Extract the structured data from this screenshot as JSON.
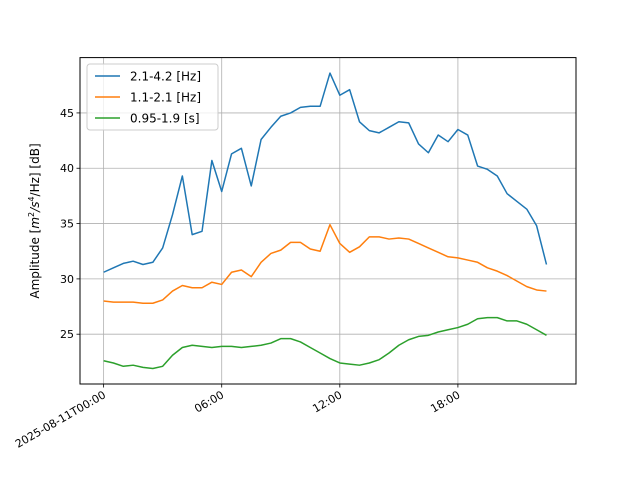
{
  "chart_data": {
    "type": "line",
    "xlabel": "",
    "ylabel": "Amplitude [m²/s⁴/Hz] [dB]",
    "ylabel_parts": {
      "prefix": "Amplitude [",
      "m": "m",
      "exp1": "2",
      "mid": "/s",
      "exp2": "4",
      "suffix": "/Hz] [dB]"
    },
    "x_start": "2025-08-11T00:00",
    "x_step_minutes": 30,
    "xlim_hours": [
      -1.2,
      24.0
    ],
    "ylim": [
      20.5,
      50.0
    ],
    "yticks": [
      25,
      30,
      35,
      40,
      45
    ],
    "xticks": [
      {
        "hour": 0,
        "label": "2025-08-11T00:00"
      },
      {
        "hour": 6,
        "label": "06:00"
      },
      {
        "hour": 12,
        "label": "12:00"
      },
      {
        "hour": 18,
        "label": "18:00"
      }
    ],
    "grid": true,
    "legend_position": "top-left",
    "series": [
      {
        "name": "2.1-4.2 [Hz]",
        "color": "#1f77b4",
        "values": [
          30.6,
          31.0,
          31.4,
          31.6,
          31.3,
          31.5,
          32.8,
          35.8,
          39.3,
          34.0,
          34.3,
          40.7,
          37.9,
          41.3,
          41.8,
          38.4,
          42.6,
          43.7,
          44.7,
          45.0,
          45.5,
          45.6,
          45.6,
          48.6,
          46.6,
          47.1,
          44.2,
          43.4,
          43.2,
          43.7,
          44.2,
          44.1,
          42.2,
          41.4,
          43.0,
          42.4,
          43.5,
          43.0,
          40.2,
          39.9,
          39.3,
          37.7,
          37.0,
          36.3,
          34.8,
          31.3
        ]
      },
      {
        "name": "1.1-2.1 [Hz]",
        "color": "#ff7f0e",
        "values": [
          28.0,
          27.9,
          27.9,
          27.9,
          27.8,
          27.8,
          28.1,
          28.9,
          29.4,
          29.2,
          29.2,
          29.7,
          29.5,
          30.6,
          30.8,
          30.2,
          31.5,
          32.3,
          32.6,
          33.3,
          33.3,
          32.7,
          32.5,
          34.9,
          33.2,
          32.4,
          32.9,
          33.8,
          33.8,
          33.6,
          33.7,
          33.6,
          33.2,
          32.8,
          32.4,
          32.0,
          31.9,
          31.7,
          31.5,
          31.0,
          30.7,
          30.3,
          29.8,
          29.3,
          29.0,
          28.9
        ]
      },
      {
        "name": "0.95-1.9 [s]",
        "color": "#2ca02c",
        "values": [
          22.6,
          22.4,
          22.1,
          22.2,
          22.0,
          21.9,
          22.1,
          23.1,
          23.8,
          24.0,
          23.9,
          23.8,
          23.9,
          23.9,
          23.8,
          23.9,
          24.0,
          24.2,
          24.6,
          24.6,
          24.3,
          23.8,
          23.3,
          22.8,
          22.4,
          22.3,
          22.2,
          22.4,
          22.7,
          23.3,
          24.0,
          24.5,
          24.8,
          24.9,
          25.2,
          25.4,
          25.6,
          25.9,
          26.4,
          26.5,
          26.5,
          26.2,
          26.2,
          25.9,
          25.4,
          24.9
        ]
      }
    ]
  }
}
